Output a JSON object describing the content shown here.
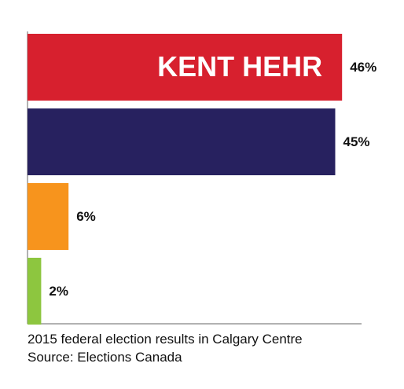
{
  "chart_data": {
    "type": "barh",
    "categories": [
      "KENT HEHR",
      null,
      null,
      null
    ],
    "values": [
      46,
      45,
      6,
      2
    ],
    "value_labels": [
      "46%",
      "45%",
      "6%",
      "2%"
    ],
    "colors": [
      "#d7202e",
      "#27215f",
      "#f7941d",
      "#8dc63f"
    ],
    "caption": [
      "2015 federal election results in Calgary Centre",
      "Source: Elections Canada"
    ]
  }
}
